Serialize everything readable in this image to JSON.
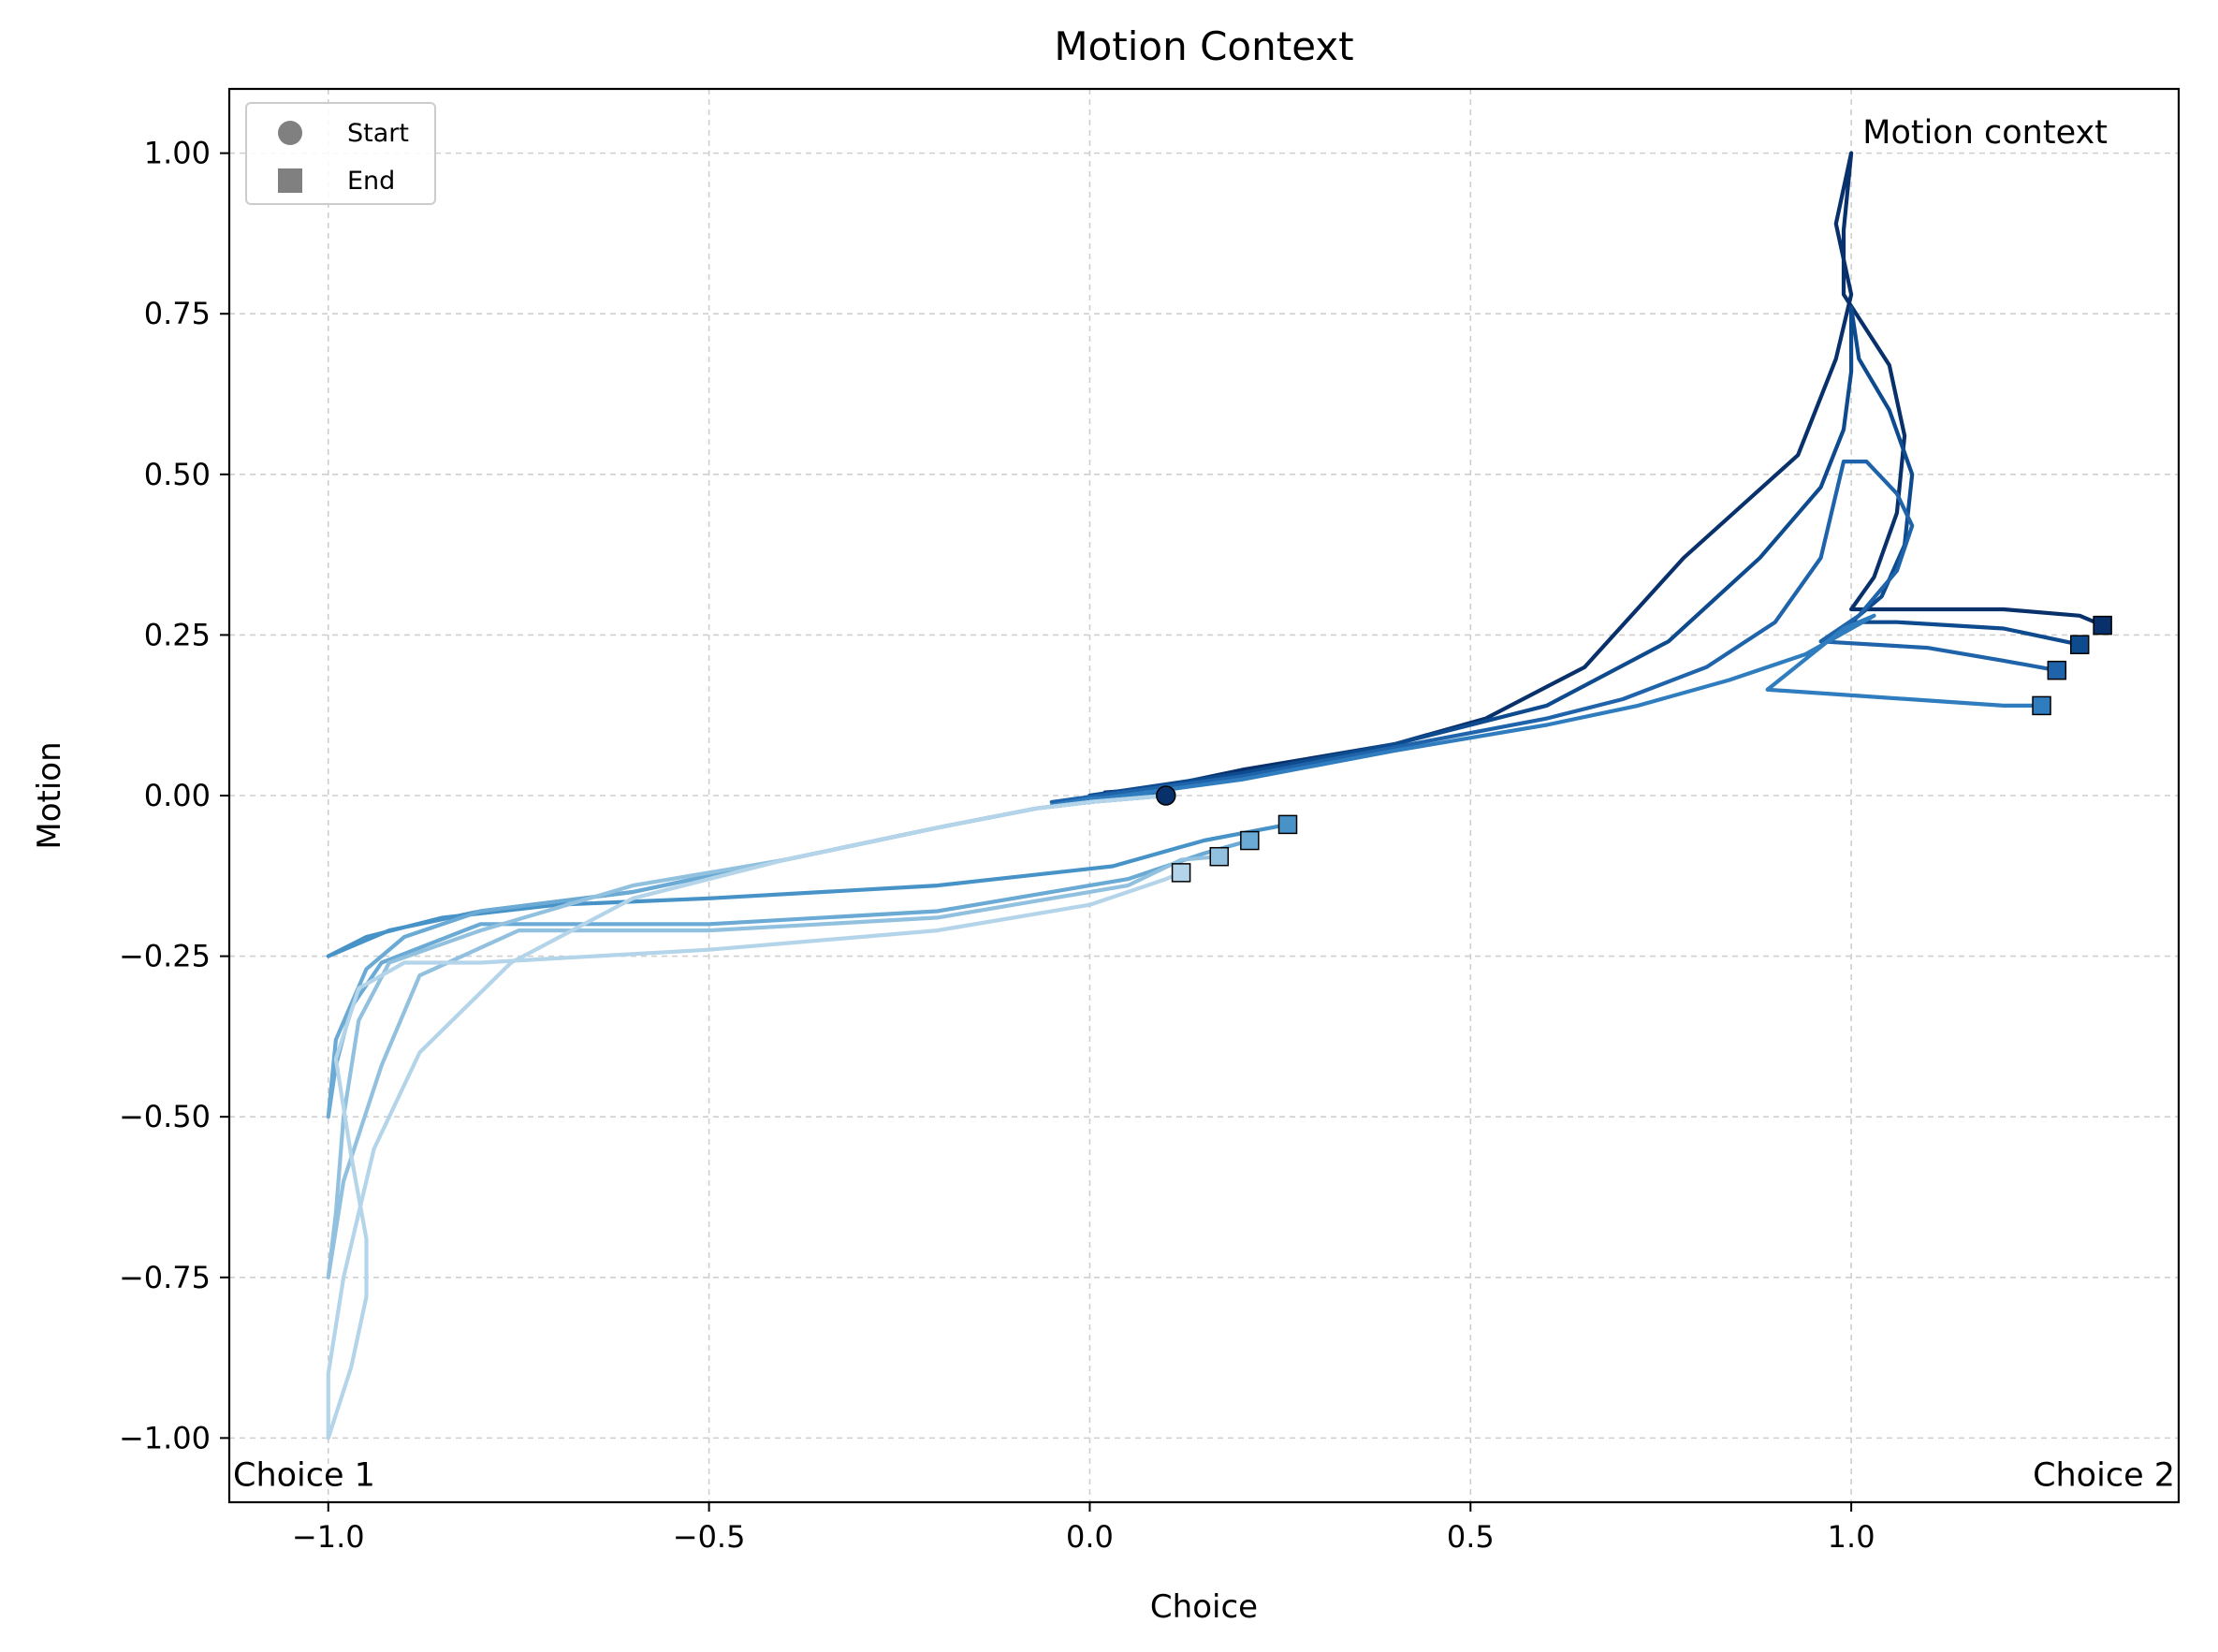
{
  "chart_data": {
    "type": "line",
    "title": "Motion Context",
    "xlabel": "Choice",
    "ylabel": "Motion",
    "xlim": [
      -1.13,
      1.43
    ],
    "ylim": [
      -1.1,
      1.1
    ],
    "xticks": [
      -1.0,
      -0.5,
      0.0,
      0.5,
      1.0
    ],
    "xtick_labels": [
      "−1.0",
      "−0.5",
      "0.0",
      "0.5",
      "1.0"
    ],
    "yticks": [
      1.0,
      0.75,
      0.5,
      0.25,
      0.0,
      -0.25,
      -0.5,
      -0.75,
      -1.0
    ],
    "ytick_labels": [
      "1.00",
      "0.75",
      "0.50",
      "0.25",
      "0.00",
      "−0.25",
      "−0.50",
      "−0.75",
      "−1.00"
    ],
    "grid": true,
    "legend": {
      "position": "top-left",
      "entries": [
        {
          "label": "Start",
          "marker": "circle"
        },
        {
          "label": "End",
          "marker": "square"
        }
      ]
    },
    "annotations": [
      {
        "text": "Motion context",
        "x": 1.01,
        "y": 1.03
      },
      {
        "text": "Choice 1",
        "x": -1.13,
        "y": -1.06
      },
      {
        "text": "Choice 2",
        "x": 1.43,
        "y": -1.06
      }
    ],
    "start_point": {
      "x": 0.1,
      "y": 0.0
    },
    "series": [
      {
        "color": "#08306b",
        "points": [
          [
            0.1,
            0.0
          ],
          [
            0.02,
            0.005
          ],
          [
            0.08,
            0.01
          ],
          [
            0.2,
            0.04
          ],
          [
            0.4,
            0.08
          ],
          [
            0.52,
            0.12
          ],
          [
            0.65,
            0.2
          ],
          [
            0.78,
            0.37
          ],
          [
            0.93,
            0.53
          ],
          [
            0.98,
            0.68
          ],
          [
            1.0,
            0.78
          ],
          [
            0.98,
            0.89
          ],
          [
            1.0,
            1.0
          ],
          [
            0.99,
            0.88
          ],
          [
            0.99,
            0.78
          ],
          [
            1.05,
            0.67
          ],
          [
            1.07,
            0.56
          ],
          [
            1.06,
            0.44
          ],
          [
            1.03,
            0.34
          ],
          [
            1.0,
            0.29
          ],
          [
            1.04,
            0.29
          ],
          [
            1.2,
            0.29
          ],
          [
            1.3,
            0.28
          ],
          [
            1.33,
            0.265
          ]
        ]
      },
      {
        "color": "#0d4a8e",
        "points": [
          [
            0.1,
            0.0
          ],
          [
            0.03,
            0.003
          ],
          [
            0.0,
            0.0
          ],
          [
            0.2,
            0.035
          ],
          [
            0.4,
            0.08
          ],
          [
            0.6,
            0.14
          ],
          [
            0.76,
            0.24
          ],
          [
            0.88,
            0.37
          ],
          [
            0.96,
            0.48
          ],
          [
            0.99,
            0.57
          ],
          [
            1.0,
            0.66
          ],
          [
            1.0,
            0.76
          ],
          [
            1.01,
            0.68
          ],
          [
            1.05,
            0.6
          ],
          [
            1.08,
            0.5
          ],
          [
            1.07,
            0.39
          ],
          [
            1.04,
            0.31
          ],
          [
            1.0,
            0.27
          ],
          [
            1.06,
            0.27
          ],
          [
            1.2,
            0.26
          ],
          [
            1.3,
            0.235
          ]
        ]
      },
      {
        "color": "#1f64aa",
        "points": [
          [
            0.1,
            0.0
          ],
          [
            0.02,
            0.0
          ],
          [
            -0.05,
            -0.01
          ],
          [
            0.2,
            0.03
          ],
          [
            0.4,
            0.075
          ],
          [
            0.6,
            0.12
          ],
          [
            0.7,
            0.15
          ],
          [
            0.81,
            0.2
          ],
          [
            0.9,
            0.27
          ],
          [
            0.96,
            0.37
          ],
          [
            0.99,
            0.52
          ],
          [
            1.02,
            0.52
          ],
          [
            1.06,
            0.47
          ],
          [
            1.08,
            0.42
          ],
          [
            1.06,
            0.35
          ],
          [
            1.01,
            0.28
          ],
          [
            0.96,
            0.24
          ],
          [
            1.1,
            0.23
          ],
          [
            1.2,
            0.21
          ],
          [
            1.27,
            0.195
          ]
        ]
      },
      {
        "color": "#2f7dbf",
        "points": [
          [
            0.1,
            0.0
          ],
          [
            0.0,
            -0.005
          ],
          [
            -0.05,
            -0.015
          ],
          [
            0.2,
            0.025
          ],
          [
            0.4,
            0.07
          ],
          [
            0.6,
            0.11
          ],
          [
            0.72,
            0.14
          ],
          [
            0.84,
            0.18
          ],
          [
            0.94,
            0.22
          ],
          [
            1.03,
            0.28
          ],
          [
            0.99,
            0.26
          ],
          [
            0.89,
            0.165
          ],
          [
            1.2,
            0.14
          ],
          [
            1.25,
            0.14
          ]
        ]
      },
      {
        "color": "#4793c8",
        "points": [
          [
            0.1,
            0.0
          ],
          [
            0.0,
            -0.01
          ],
          [
            -0.07,
            -0.02
          ],
          [
            -0.2,
            -0.05
          ],
          [
            -0.4,
            -0.1
          ],
          [
            -0.6,
            -0.15
          ],
          [
            -0.8,
            -0.18
          ],
          [
            -0.92,
            -0.21
          ],
          [
            -1.0,
            -0.25
          ],
          [
            -0.95,
            -0.22
          ],
          [
            -0.85,
            -0.19
          ],
          [
            -0.7,
            -0.17
          ],
          [
            -0.5,
            -0.16
          ],
          [
            -0.2,
            -0.14
          ],
          [
            0.03,
            -0.11
          ],
          [
            0.15,
            -0.07
          ],
          [
            0.26,
            -0.045
          ]
        ]
      },
      {
        "color": "#6aaad4",
        "points": [
          [
            0.1,
            0.0
          ],
          [
            0.0,
            -0.01
          ],
          [
            -0.07,
            -0.02
          ],
          [
            -0.2,
            -0.05
          ],
          [
            -0.4,
            -0.1
          ],
          [
            -0.6,
            -0.15
          ],
          [
            -0.8,
            -0.18
          ],
          [
            -0.9,
            -0.22
          ],
          [
            -0.95,
            -0.27
          ],
          [
            -0.99,
            -0.38
          ],
          [
            -1.0,
            -0.5
          ],
          [
            -0.99,
            -0.42
          ],
          [
            -0.97,
            -0.33
          ],
          [
            -0.93,
            -0.26
          ],
          [
            -0.8,
            -0.2
          ],
          [
            -0.5,
            -0.2
          ],
          [
            -0.2,
            -0.18
          ],
          [
            0.05,
            -0.13
          ],
          [
            0.15,
            -0.09
          ],
          [
            0.21,
            -0.07
          ]
        ]
      },
      {
        "color": "#92c1df",
        "points": [
          [
            0.1,
            0.0
          ],
          [
            0.0,
            -0.01
          ],
          [
            -0.07,
            -0.02
          ],
          [
            -0.2,
            -0.05
          ],
          [
            -0.4,
            -0.1
          ],
          [
            -0.6,
            -0.14
          ],
          [
            -0.8,
            -0.21
          ],
          [
            -0.92,
            -0.26
          ],
          [
            -0.96,
            -0.35
          ],
          [
            -0.98,
            -0.5
          ],
          [
            -0.99,
            -0.65
          ],
          [
            -1.0,
            -0.75
          ],
          [
            -0.98,
            -0.6
          ],
          [
            -0.93,
            -0.42
          ],
          [
            -0.88,
            -0.28
          ],
          [
            -0.75,
            -0.21
          ],
          [
            -0.5,
            -0.21
          ],
          [
            -0.2,
            -0.19
          ],
          [
            0.05,
            -0.14
          ],
          [
            0.12,
            -0.1
          ],
          [
            0.17,
            -0.095
          ]
        ]
      },
      {
        "color": "#b4d4e9",
        "points": [
          [
            0.1,
            0.0
          ],
          [
            0.0,
            -0.01
          ],
          [
            -0.07,
            -0.02
          ],
          [
            -0.2,
            -0.05
          ],
          [
            -0.4,
            -0.1
          ],
          [
            -0.6,
            -0.16
          ],
          [
            -0.76,
            -0.26
          ],
          [
            -0.88,
            -0.4
          ],
          [
            -0.94,
            -0.55
          ],
          [
            -0.96,
            -0.65
          ],
          [
            -0.98,
            -0.75
          ],
          [
            -1.0,
            -0.9
          ],
          [
            -1.0,
            -1.0
          ],
          [
            -0.97,
            -0.89
          ],
          [
            -0.95,
            -0.78
          ],
          [
            -0.95,
            -0.69
          ],
          [
            -0.97,
            -0.56
          ],
          [
            -0.99,
            -0.41
          ],
          [
            -0.96,
            -0.3
          ],
          [
            -0.9,
            -0.26
          ],
          [
            -0.8,
            -0.26
          ],
          [
            -0.5,
            -0.24
          ],
          [
            -0.2,
            -0.21
          ],
          [
            0.0,
            -0.17
          ],
          [
            0.1,
            -0.13
          ],
          [
            0.12,
            -0.12
          ]
        ]
      }
    ]
  }
}
